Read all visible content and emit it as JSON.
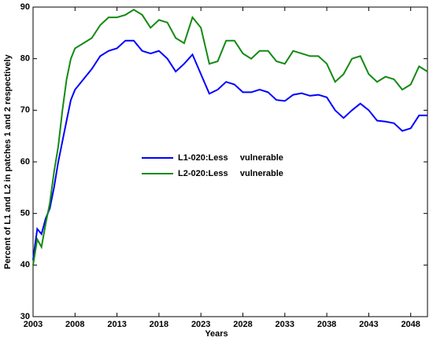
{
  "chart_data": {
    "type": "line",
    "x_label": "Years",
    "y_label": "Percent of L1 and L2 in patches 1 and 2 respectively",
    "x": [
      2003,
      2003.5,
      2004,
      2004.5,
      2005,
      2005.5,
      2006,
      2006.5,
      2007,
      2007.5,
      2008,
      2009,
      2010,
      2011,
      2012,
      2013,
      2014,
      2015,
      2016,
      2017,
      2018,
      2019,
      2020,
      2021,
      2022,
      2023,
      2024,
      2025,
      2026,
      2027,
      2028,
      2029,
      2030,
      2031,
      2032,
      2033,
      2034,
      2035,
      2036,
      2037,
      2038,
      2039,
      2040,
      2041,
      2042,
      2043,
      2044,
      2045,
      2046,
      2047,
      2048,
      2049,
      2050
    ],
    "series": [
      {
        "name": "L1-020:Less     vulnerable",
        "color": "#0000ff",
        "values": [
          41,
          47,
          46,
          49,
          51,
          55,
          60,
          64,
          68,
          72,
          74,
          76,
          78,
          80.5,
          81.5,
          82,
          83.5,
          83.5,
          81.5,
          81,
          81.5,
          80,
          77.5,
          79,
          80.8,
          77,
          73.2,
          74,
          75.5,
          75,
          73.5,
          73.5,
          74,
          73.5,
          72,
          71.8,
          73,
          73.3,
          72.8,
          73,
          72.5,
          70,
          68.5,
          70,
          71.3,
          70,
          68,
          67.8,
          67.5,
          66,
          66.5,
          69,
          69
        ]
      },
      {
        "name": "L2-020:Less     vulnerable",
        "color": "#138a13",
        "values": [
          40,
          45,
          43.5,
          48,
          52,
          58,
          63,
          70,
          76,
          80,
          82,
          83,
          84,
          86.5,
          88,
          88,
          88.5,
          89.5,
          88.5,
          86,
          87.5,
          87,
          84,
          83,
          88,
          86,
          79,
          79.5,
          83.5,
          83.5,
          81,
          80,
          81.5,
          81.5,
          79.5,
          79,
          81.5,
          81,
          80.5,
          80.5,
          79,
          75.5,
          77,
          80,
          80.5,
          77,
          75.5,
          76.5,
          76,
          74,
          75,
          78.5,
          77.5
        ]
      }
    ],
    "xlim": [
      2003,
      2050
    ],
    "xticks": [
      2003,
      2008,
      2013,
      2018,
      2023,
      2028,
      2033,
      2038,
      2043,
      2048
    ],
    "ylim": [
      30,
      90
    ],
    "yticks": [
      30,
      40,
      50,
      60,
      70,
      80,
      90
    ],
    "grid": false,
    "legend": "center"
  }
}
